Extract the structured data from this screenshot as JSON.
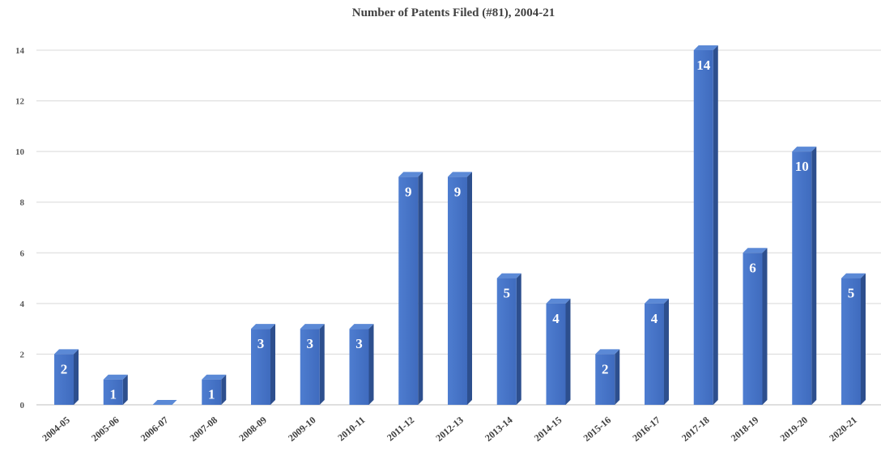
{
  "chart_data": {
    "type": "bar",
    "title": "Number  of Patents Filed (#81), 2004-21",
    "xlabel": "",
    "ylabel": "",
    "categories": [
      "2004-05",
      "2005-06",
      "2006-07",
      "2007-08",
      "2008-09",
      "2009-10",
      "2010-11",
      "2011-12",
      "2012-13",
      "2013-14",
      "2014-15",
      "2015-16",
      "2016-17",
      "2017-18",
      "2018-19",
      "2019-20",
      "2020-21"
    ],
    "values": [
      2,
      1,
      0,
      1,
      3,
      3,
      3,
      9,
      9,
      5,
      4,
      2,
      4,
      14,
      6,
      10,
      5
    ],
    "data_labels": [
      "2",
      "1",
      "",
      "1",
      "3",
      "3",
      "3",
      "9",
      "9",
      "5",
      "4",
      "2",
      "4",
      "14",
      "6",
      "10",
      "5"
    ],
    "ylim": [
      0,
      14
    ],
    "yticks": [
      "0",
      "2",
      "4",
      "6",
      "8",
      "10",
      "12",
      "14"
    ],
    "grid": true,
    "legend": "none",
    "bar_color": "#4472C4"
  }
}
